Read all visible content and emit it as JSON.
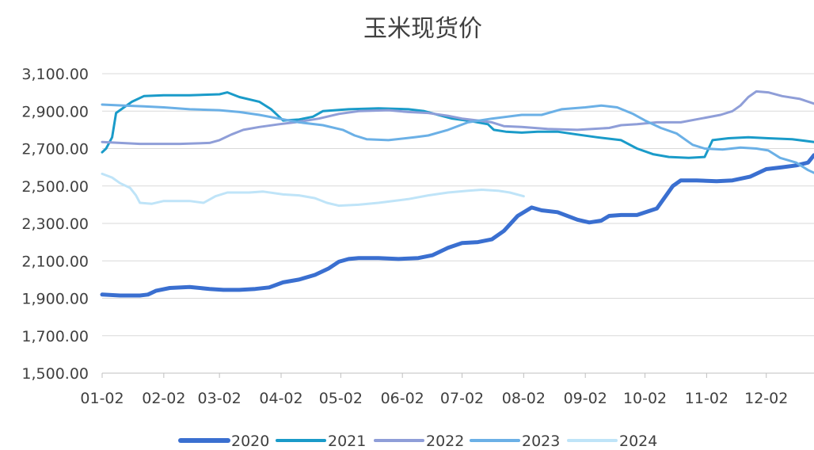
{
  "chart_data": {
    "type": "line",
    "title": "玉米现货价",
    "xlabel": "",
    "ylabel": "",
    "ylim": [
      1500,
      3100
    ],
    "y_ticks": [
      "3,100.00",
      "2,900.00",
      "2,700.00",
      "2,500.00",
      "2,300.00",
      "2,100.00",
      "1,900.00",
      "1,700.00",
      "1,500.00"
    ],
    "x_tick_labels": [
      "01-02",
      "02-02",
      "03-02",
      "04-02",
      "05-02",
      "06-02",
      "07-02",
      "08-02",
      "09-02",
      "10-02",
      "11-02",
      "12-02"
    ],
    "x_unit": "day_of_year",
    "x_tick_days": [
      1,
      32,
      60,
      91,
      121,
      152,
      182,
      213,
      244,
      274,
      305,
      335
    ],
    "grid": "horizontal",
    "legend": "bottom",
    "series": [
      {
        "name": "2020",
        "color": "#3A6FD0",
        "width": 5,
        "points": [
          [
            1,
            1920
          ],
          [
            10,
            1915
          ],
          [
            20,
            1915
          ],
          [
            24,
            1920
          ],
          [
            28,
            1940
          ],
          [
            35,
            1955
          ],
          [
            45,
            1960
          ],
          [
            55,
            1950
          ],
          [
            62,
            1945
          ],
          [
            70,
            1945
          ],
          [
            78,
            1950
          ],
          [
            85,
            1958
          ],
          [
            92,
            1985
          ],
          [
            100,
            2000
          ],
          [
            108,
            2025
          ],
          [
            115,
            2060
          ],
          [
            120,
            2095
          ],
          [
            125,
            2110
          ],
          [
            130,
            2115
          ],
          [
            140,
            2115
          ],
          [
            150,
            2110
          ],
          [
            160,
            2115
          ],
          [
            167,
            2130
          ],
          [
            175,
            2170
          ],
          [
            182,
            2195
          ],
          [
            190,
            2200
          ],
          [
            197,
            2215
          ],
          [
            203,
            2260
          ],
          [
            210,
            2340
          ],
          [
            217,
            2385
          ],
          [
            222,
            2370
          ],
          [
            230,
            2360
          ],
          [
            240,
            2320
          ],
          [
            246,
            2305
          ],
          [
            252,
            2315
          ],
          [
            256,
            2340
          ],
          [
            262,
            2345
          ],
          [
            270,
            2345
          ],
          [
            280,
            2380
          ],
          [
            288,
            2500
          ],
          [
            292,
            2530
          ],
          [
            300,
            2530
          ],
          [
            310,
            2525
          ],
          [
            318,
            2530
          ],
          [
            327,
            2550
          ],
          [
            335,
            2590
          ],
          [
            343,
            2600
          ],
          [
            350,
            2610
          ],
          [
            356,
            2625
          ],
          [
            359,
            2665
          ]
        ]
      },
      {
        "name": "2021",
        "color": "#1A9BC9",
        "width": 3,
        "points": [
          [
            1,
            2680
          ],
          [
            3,
            2700
          ],
          [
            6,
            2760
          ],
          [
            8,
            2890
          ],
          [
            12,
            2920
          ],
          [
            16,
            2950
          ],
          [
            22,
            2980
          ],
          [
            32,
            2985
          ],
          [
            45,
            2985
          ],
          [
            60,
            2990
          ],
          [
            64,
            3000
          ],
          [
            70,
            2975
          ],
          [
            80,
            2950
          ],
          [
            86,
            2910
          ],
          [
            90,
            2870
          ],
          [
            92,
            2850
          ],
          [
            100,
            2855
          ],
          [
            107,
            2870
          ],
          [
            112,
            2900
          ],
          [
            125,
            2910
          ],
          [
            140,
            2915
          ],
          [
            155,
            2910
          ],
          [
            163,
            2900
          ],
          [
            170,
            2880
          ],
          [
            177,
            2860
          ],
          [
            187,
            2845
          ],
          [
            195,
            2830
          ],
          [
            198,
            2800
          ],
          [
            204,
            2790
          ],
          [
            212,
            2785
          ],
          [
            220,
            2790
          ],
          [
            230,
            2790
          ],
          [
            240,
            2775
          ],
          [
            250,
            2760
          ],
          [
            262,
            2745
          ],
          [
            270,
            2700
          ],
          [
            278,
            2670
          ],
          [
            286,
            2655
          ],
          [
            296,
            2650
          ],
          [
            304,
            2655
          ],
          [
            306,
            2700
          ],
          [
            308,
            2745
          ],
          [
            316,
            2755
          ],
          [
            326,
            2760
          ],
          [
            336,
            2755
          ],
          [
            348,
            2750
          ],
          [
            359,
            2735
          ]
        ]
      },
      {
        "name": "2022",
        "color": "#8F9ED8",
        "width": 3,
        "points": [
          [
            1,
            2735
          ],
          [
            10,
            2730
          ],
          [
            20,
            2725
          ],
          [
            40,
            2725
          ],
          [
            55,
            2730
          ],
          [
            60,
            2745
          ],
          [
            66,
            2775
          ],
          [
            72,
            2800
          ],
          [
            80,
            2815
          ],
          [
            90,
            2830
          ],
          [
            98,
            2840
          ],
          [
            110,
            2860
          ],
          [
            120,
            2885
          ],
          [
            130,
            2900
          ],
          [
            145,
            2905
          ],
          [
            155,
            2895
          ],
          [
            165,
            2890
          ],
          [
            175,
            2875
          ],
          [
            182,
            2860
          ],
          [
            190,
            2850
          ],
          [
            197,
            2840
          ],
          [
            203,
            2820
          ],
          [
            212,
            2815
          ],
          [
            225,
            2805
          ],
          [
            240,
            2800
          ],
          [
            256,
            2810
          ],
          [
            262,
            2825
          ],
          [
            270,
            2830
          ],
          [
            280,
            2840
          ],
          [
            292,
            2840
          ],
          [
            302,
            2860
          ],
          [
            312,
            2880
          ],
          [
            318,
            2900
          ],
          [
            322,
            2930
          ],
          [
            326,
            2975
          ],
          [
            330,
            3005
          ],
          [
            336,
            3000
          ],
          [
            343,
            2980
          ],
          [
            352,
            2965
          ],
          [
            359,
            2940
          ]
        ]
      },
      {
        "name": "2023",
        "color": "#6BB0E6",
        "width": 3,
        "points": [
          [
            1,
            2935
          ],
          [
            12,
            2930
          ],
          [
            22,
            2925
          ],
          [
            32,
            2920
          ],
          [
            45,
            2910
          ],
          [
            60,
            2905
          ],
          [
            70,
            2895
          ],
          [
            80,
            2880
          ],
          [
            90,
            2860
          ],
          [
            100,
            2840
          ],
          [
            112,
            2825
          ],
          [
            122,
            2800
          ],
          [
            128,
            2770
          ],
          [
            134,
            2750
          ],
          [
            145,
            2745
          ],
          [
            158,
            2760
          ],
          [
            165,
            2770
          ],
          [
            175,
            2800
          ],
          [
            185,
            2840
          ],
          [
            197,
            2860
          ],
          [
            212,
            2880
          ],
          [
            222,
            2880
          ],
          [
            232,
            2910
          ],
          [
            244,
            2920
          ],
          [
            252,
            2930
          ],
          [
            260,
            2920
          ],
          [
            268,
            2885
          ],
          [
            274,
            2850
          ],
          [
            282,
            2810
          ],
          [
            290,
            2780
          ],
          [
            298,
            2720
          ],
          [
            304,
            2700
          ],
          [
            313,
            2695
          ],
          [
            322,
            2705
          ],
          [
            330,
            2700
          ],
          [
            336,
            2690
          ],
          [
            342,
            2650
          ],
          [
            350,
            2625
          ],
          [
            356,
            2585
          ],
          [
            359,
            2570
          ]
        ]
      },
      {
        "name": "2024",
        "color": "#BFE4F8",
        "width": 3,
        "points": [
          [
            1,
            2565
          ],
          [
            6,
            2545
          ],
          [
            10,
            2515
          ],
          [
            15,
            2490
          ],
          [
            18,
            2450
          ],
          [
            20,
            2410
          ],
          [
            26,
            2405
          ],
          [
            32,
            2420
          ],
          [
            45,
            2420
          ],
          [
            52,
            2410
          ],
          [
            58,
            2445
          ],
          [
            64,
            2465
          ],
          [
            75,
            2465
          ],
          [
            82,
            2470
          ],
          [
            92,
            2455
          ],
          [
            100,
            2450
          ],
          [
            108,
            2435
          ],
          [
            114,
            2410
          ],
          [
            120,
            2395
          ],
          [
            130,
            2400
          ],
          [
            140,
            2410
          ],
          [
            155,
            2430
          ],
          [
            165,
            2450
          ],
          [
            175,
            2465
          ],
          [
            185,
            2475
          ],
          [
            192,
            2480
          ],
          [
            200,
            2475
          ],
          [
            206,
            2465
          ],
          [
            213,
            2445
          ]
        ]
      }
    ]
  }
}
